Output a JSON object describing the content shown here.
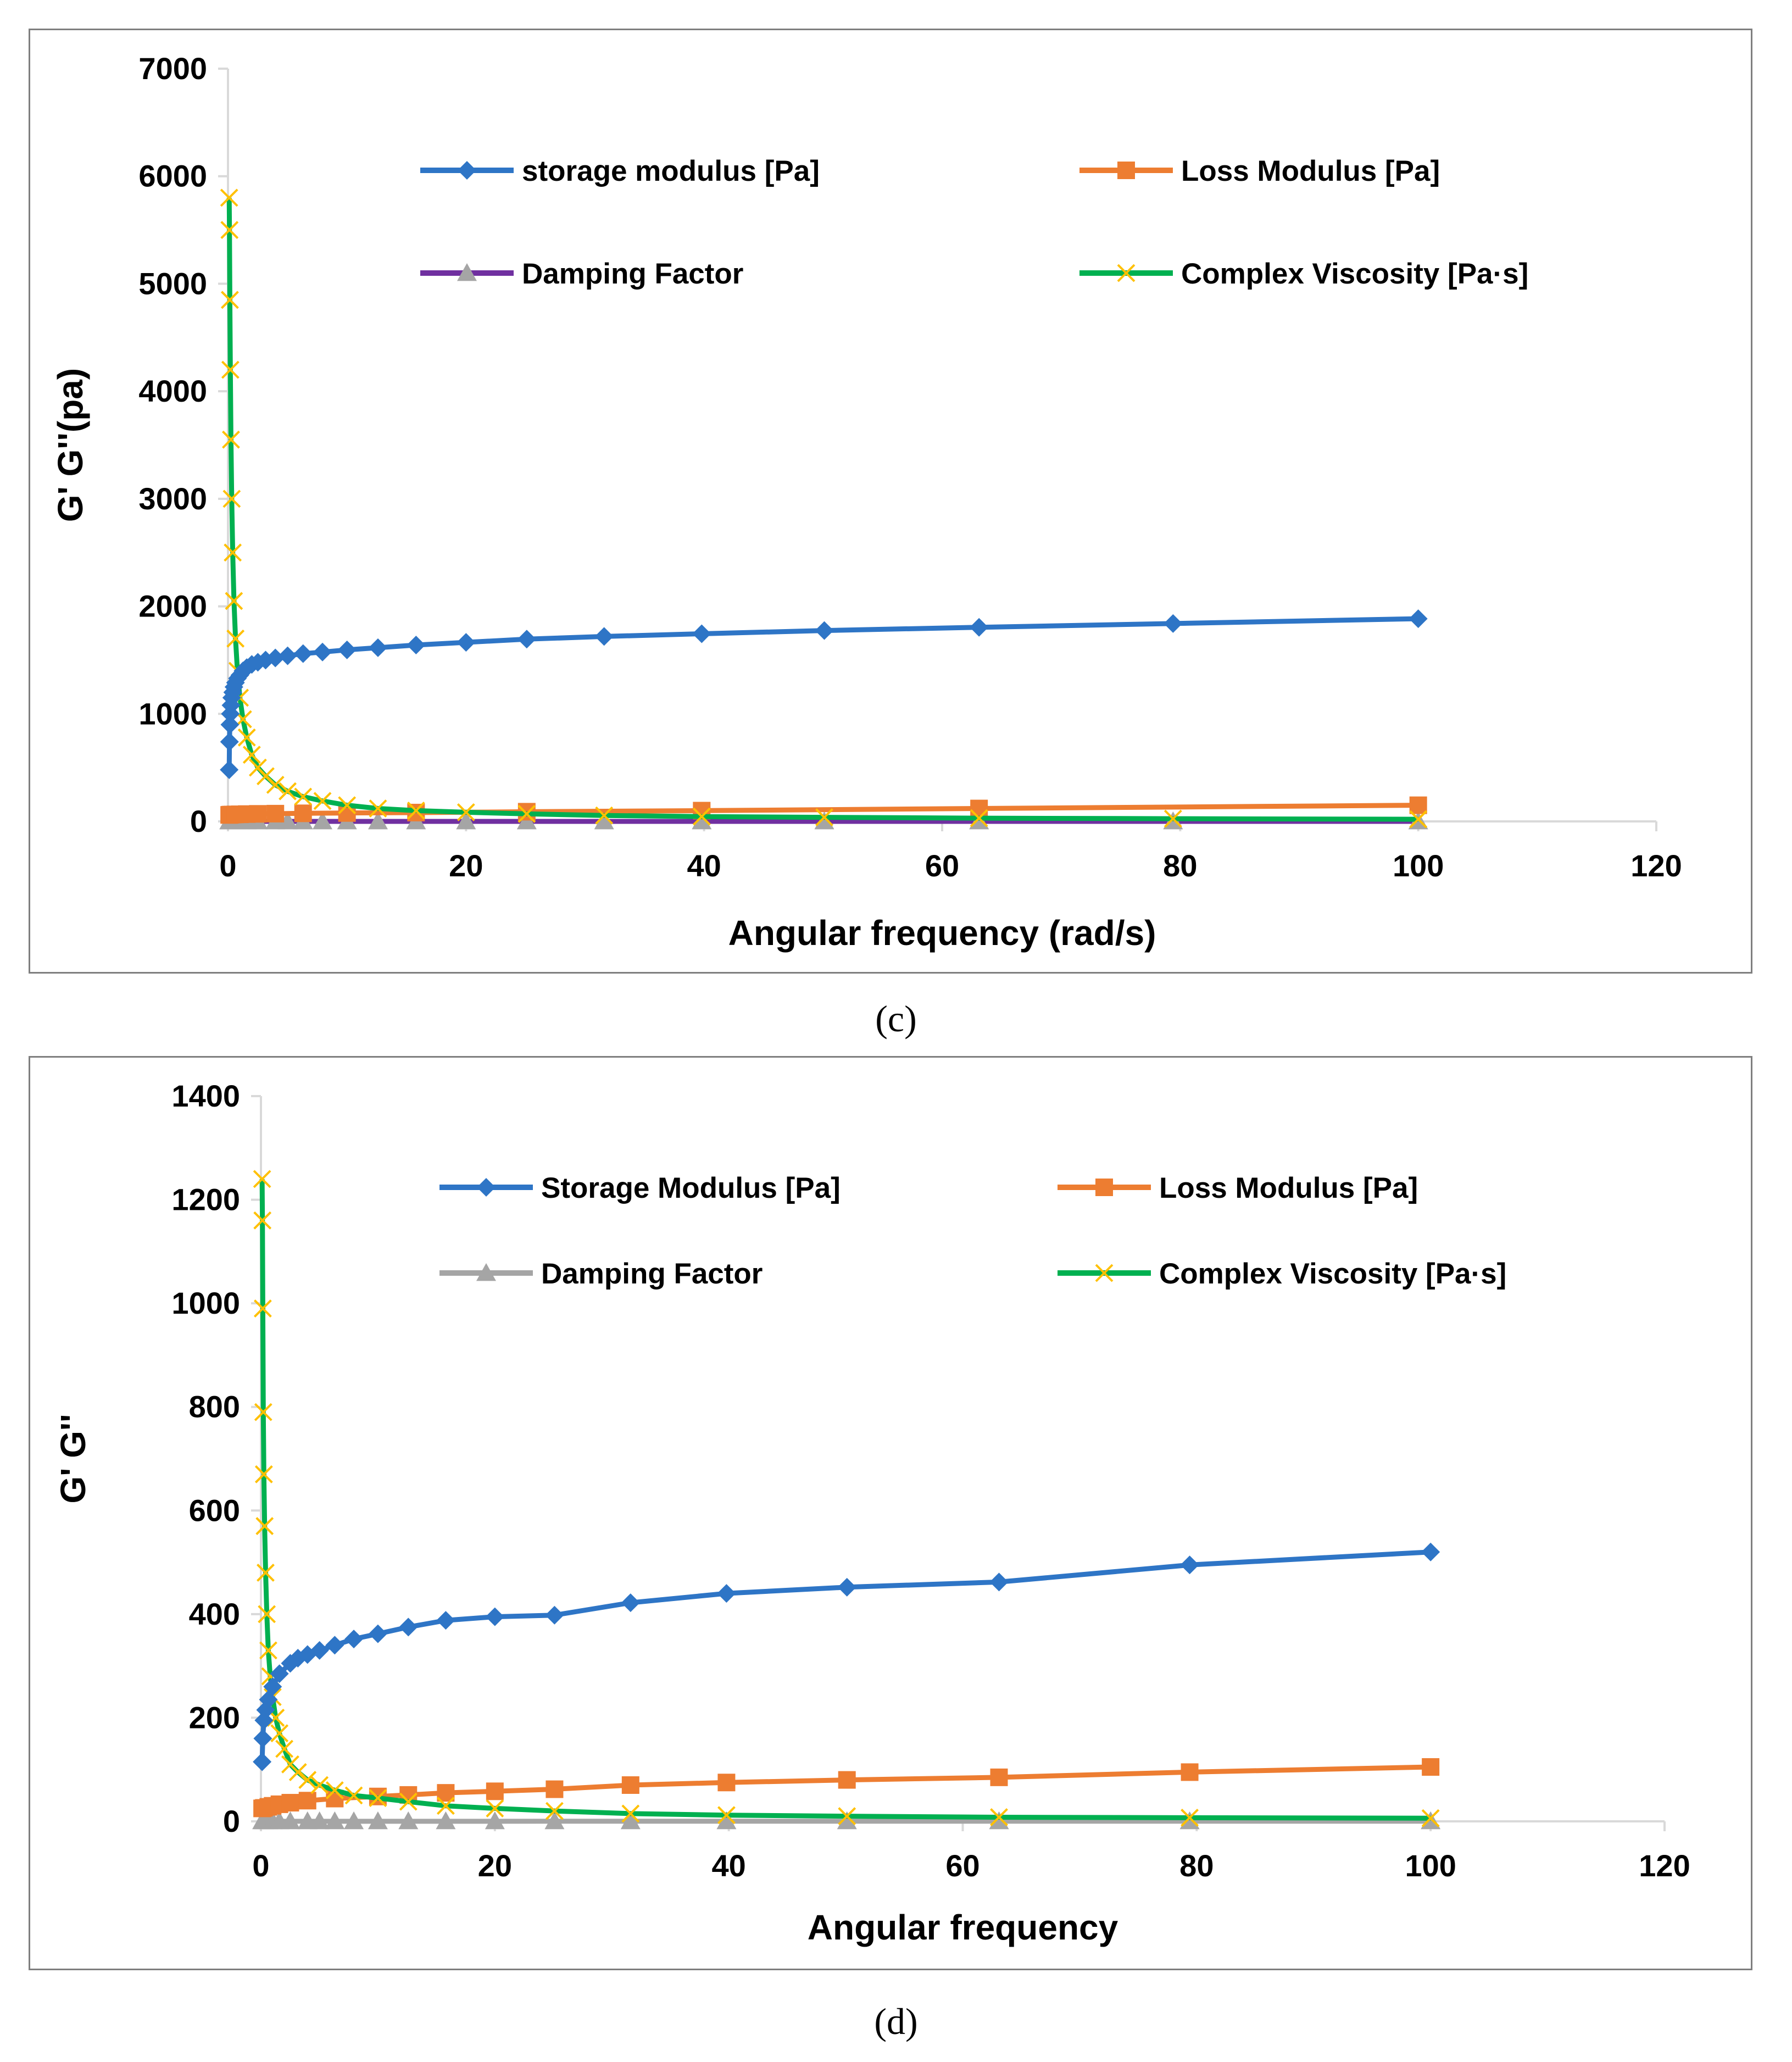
{
  "captions": {
    "c": "(c)",
    "d": "(d)"
  },
  "chart_data": [
    {
      "id": "c",
      "type": "line",
      "xlabel": "Angular frequency (rad/s)",
      "ylabel": "G' G''(pa)",
      "xlim": [
        0,
        120
      ],
      "ylim": [
        0,
        7000
      ],
      "xticks": [
        0,
        20,
        40,
        60,
        80,
        100,
        120
      ],
      "yticks": [
        0,
        1000,
        2000,
        3000,
        4000,
        5000,
        6000,
        7000
      ],
      "legend_position": "top",
      "series": [
        {
          "name": "storage modulus [Pa]",
          "color": "#2e75c6",
          "marker": "diamond",
          "x": [
            0.1,
            0.126,
            0.158,
            0.2,
            0.251,
            0.316,
            0.398,
            0.501,
            0.631,
            0.794,
            1,
            1.26,
            1.58,
            2,
            2.51,
            3.16,
            3.98,
            5.01,
            6.31,
            7.94,
            10,
            12.6,
            15.8,
            20,
            25.1,
            31.6,
            39.8,
            50.1,
            63.1,
            79.4,
            100
          ],
          "y": [
            480,
            740,
            900,
            1000,
            1080,
            1150,
            1200,
            1250,
            1290,
            1330,
            1360,
            1400,
            1430,
            1460,
            1480,
            1500,
            1520,
            1540,
            1560,
            1575,
            1595,
            1615,
            1640,
            1665,
            1695,
            1720,
            1745,
            1775,
            1805,
            1840,
            1885
          ]
        },
        {
          "name": "Loss Modulus [Pa]",
          "color": "#ed7d31",
          "marker": "square",
          "x": [
            0.1,
            0.158,
            0.251,
            0.398,
            0.631,
            1,
            1.58,
            2.51,
            3.98,
            6.31,
            10,
            15.8,
            25.1,
            39.8,
            63.1,
            100
          ],
          "y": [
            60,
            62,
            63,
            64,
            65,
            66,
            68,
            70,
            72,
            75,
            78,
            82,
            90,
            100,
            120,
            150
          ]
        },
        {
          "name": "Damping Factor",
          "color": "#7030a0",
          "marker": "triangle",
          "x": [
            0.1,
            0.158,
            0.251,
            0.398,
            0.631,
            1,
            1.58,
            2.51,
            3.98,
            5.01,
            6.31,
            7.94,
            10,
            12.6,
            15.8,
            20,
            25.1,
            31.6,
            39.8,
            50.1,
            63.1,
            79.4,
            100
          ],
          "y": [
            0.12,
            0.09,
            0.07,
            0.06,
            0.05,
            0.05,
            0.05,
            0.05,
            0.05,
            0.05,
            0.05,
            0.05,
            0.05,
            0.05,
            0.05,
            0.05,
            0.05,
            0.05,
            0.06,
            0.06,
            0.07,
            0.08,
            0.08
          ]
        },
        {
          "name": "Complex Viscosity [Pa·s]",
          "color": "#00b050",
          "marker": "x",
          "x": [
            0.1,
            0.126,
            0.158,
            0.2,
            0.251,
            0.316,
            0.398,
            0.501,
            0.631,
            0.794,
            1,
            1.26,
            1.58,
            2,
            2.51,
            3.16,
            3.98,
            5.01,
            6.31,
            7.94,
            10,
            12.6,
            15.8,
            20,
            25.1,
            31.6,
            39.8,
            50.1,
            63.1,
            79.4,
            100
          ],
          "y": [
            5800,
            5500,
            4850,
            4200,
            3550,
            3000,
            2500,
            2050,
            1700,
            1400,
            1150,
            950,
            780,
            620,
            500,
            420,
            340,
            280,
            230,
            190,
            150,
            120,
            100,
            85,
            70,
            55,
            45,
            38,
            30,
            25,
            20
          ]
        }
      ]
    },
    {
      "id": "d",
      "type": "line",
      "xlabel": "Angular frequency",
      "ylabel": "G' G''",
      "xlim": [
        0,
        120
      ],
      "ylim": [
        0,
        1400
      ],
      "xticks": [
        0,
        20,
        40,
        60,
        80,
        100,
        120
      ],
      "yticks": [
        0,
        200,
        400,
        600,
        800,
        1000,
        1200,
        1400
      ],
      "legend_position": "top",
      "series": [
        {
          "name": "Storage Modulus [Pa]",
          "color": "#2e75c6",
          "marker": "diamond",
          "x": [
            0.1,
            0.158,
            0.251,
            0.398,
            0.631,
            1,
            1.58,
            2.51,
            3.16,
            3.98,
            5.01,
            6.31,
            7.94,
            10,
            12.6,
            15.8,
            20,
            25.1,
            31.6,
            39.8,
            50.1,
            63.1,
            79.4,
            100
          ],
          "y": [
            115,
            160,
            195,
            215,
            235,
            260,
            285,
            305,
            315,
            322,
            330,
            340,
            352,
            362,
            375,
            388,
            395,
            398,
            422,
            440,
            452,
            462,
            495,
            520
          ]
        },
        {
          "name": "Loss Modulus [Pa]",
          "color": "#ed7d31",
          "marker": "square",
          "x": [
            0.1,
            0.251,
            0.631,
            1,
            1.58,
            2.51,
            3.98,
            6.31,
            10,
            12.6,
            15.8,
            20,
            25.1,
            31.6,
            39.8,
            50.1,
            63.1,
            79.4,
            100
          ],
          "y": [
            25,
            26,
            28,
            30,
            33,
            36,
            40,
            44,
            48,
            51,
            55,
            58,
            62,
            70,
            75,
            80,
            85,
            95,
            105
          ]
        },
        {
          "name": "Damping Factor",
          "color": "#a5a5a5",
          "marker": "triangle",
          "x": [
            0.1,
            0.251,
            0.631,
            1,
            1.58,
            2.51,
            3.98,
            5.01,
            6.31,
            7.94,
            10,
            12.6,
            15.8,
            20,
            25.1,
            31.6,
            39.8,
            50.1,
            63.1,
            79.4,
            100
          ],
          "y": [
            0.2,
            0.15,
            0.12,
            0.12,
            0.12,
            0.12,
            0.13,
            0.13,
            0.13,
            0.14,
            0.14,
            0.14,
            0.15,
            0.15,
            0.16,
            0.17,
            0.17,
            0.18,
            0.18,
            0.19,
            0.2
          ]
        },
        {
          "name": "Complex Viscosity [Pa·s]",
          "color": "#00b050",
          "marker": "x",
          "x": [
            0.1,
            0.126,
            0.158,
            0.2,
            0.251,
            0.316,
            0.398,
            0.501,
            0.631,
            0.794,
            1,
            1.26,
            1.58,
            2,
            2.51,
            3.16,
            3.98,
            5.01,
            6.31,
            7.94,
            10,
            12.6,
            15.8,
            20,
            25.1,
            31.6,
            39.8,
            50.1,
            63.1,
            79.4,
            100
          ],
          "y": [
            1240,
            1160,
            990,
            790,
            670,
            570,
            480,
            400,
            330,
            280,
            240,
            200,
            170,
            140,
            110,
            95,
            80,
            70,
            60,
            50,
            45,
            38,
            30,
            25,
            20,
            15,
            12,
            10,
            8,
            7,
            6
          ]
        }
      ]
    }
  ]
}
